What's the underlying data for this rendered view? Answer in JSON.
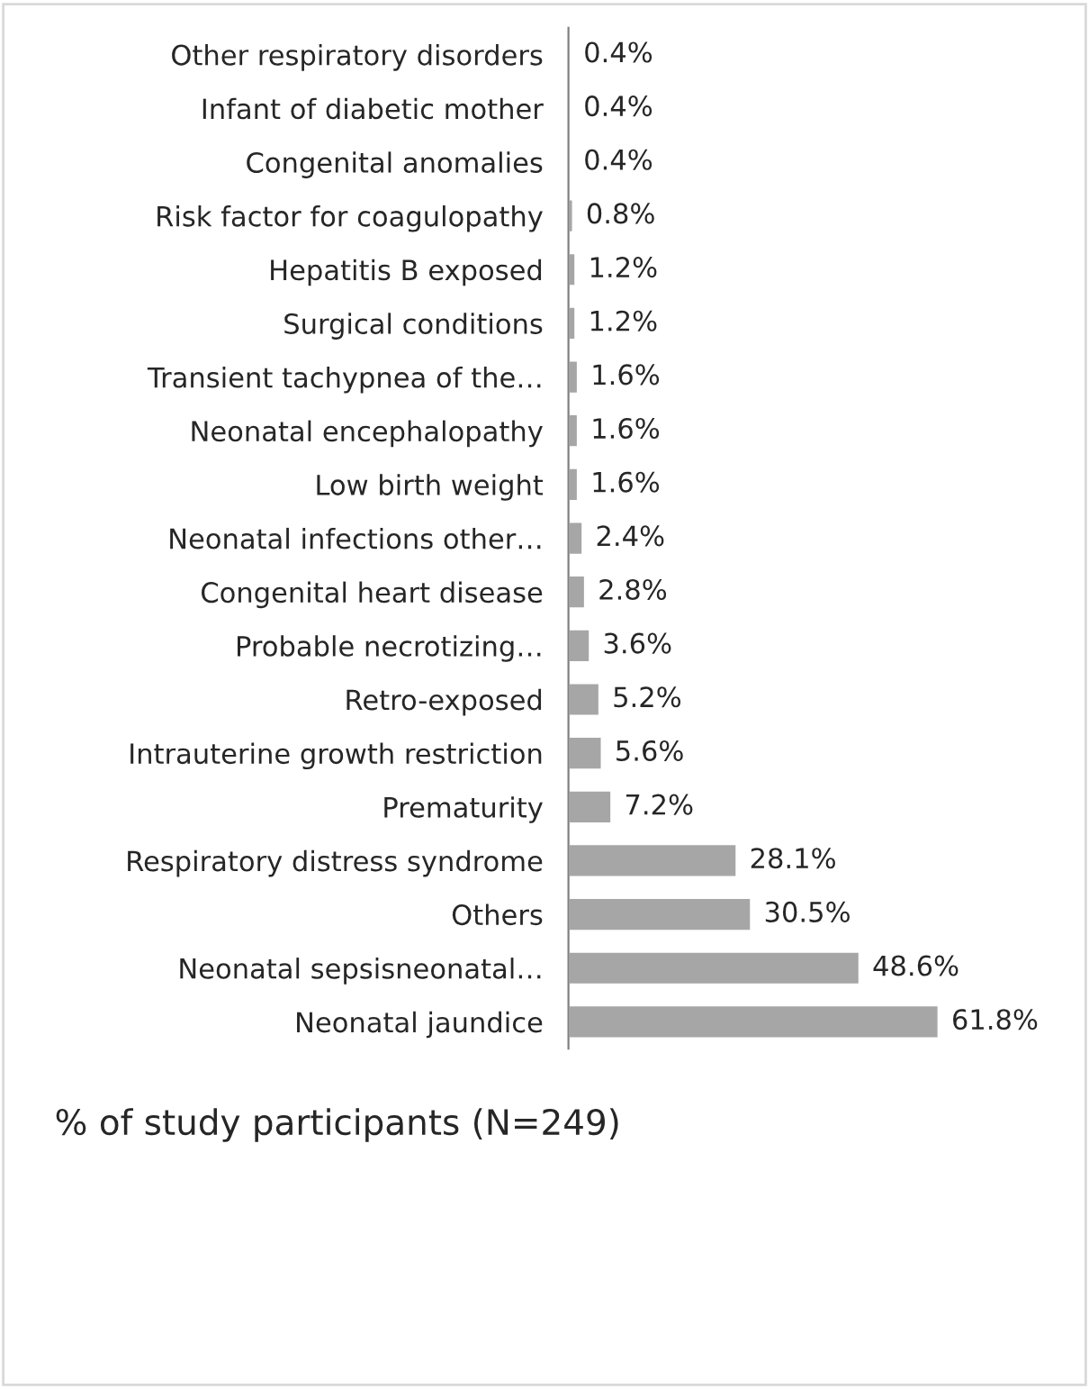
{
  "chart_data": {
    "type": "bar",
    "orientation": "horizontal",
    "xlabel": "% of study participants (N=249)",
    "categories": [
      "Other respiratory disorders",
      "Infant of diabetic mother",
      "Congenital anomalies",
      "Risk factor for coagulopathy",
      "Hepatitis B exposed",
      "Surgical conditions",
      "Transient tachypnea of the…",
      "Neonatal encephalopathy",
      "Low birth weight",
      "Neonatal infections other…",
      "Congenital heart disease",
      "Probable necrotizing…",
      "Retro-exposed",
      "Intrauterine growth restriction",
      "Prematurity",
      "Respiratory distress syndrome",
      "Others",
      "Neonatal sepsisneonatal…",
      "Neonatal jaundice"
    ],
    "values": [
      0.4,
      0.4,
      0.4,
      0.8,
      1.2,
      1.2,
      1.6,
      1.6,
      1.6,
      2.4,
      2.8,
      3.6,
      5.2,
      5.6,
      7.2,
      28.1,
      30.5,
      48.6,
      61.8
    ],
    "value_labels": [
      "0.4%",
      "0.4%",
      "0.4%",
      "0.8%",
      "1.2%",
      "1.2%",
      "1.6%",
      "1.6%",
      "1.6%",
      "2.4%",
      "2.8%",
      "3.6%",
      "5.2%",
      "5.6%",
      "7.2%",
      "28.1%",
      "30.5%",
      "48.6%",
      "61.8%"
    ],
    "color": "#a6a6a6",
    "grid": false,
    "legend": false
  }
}
